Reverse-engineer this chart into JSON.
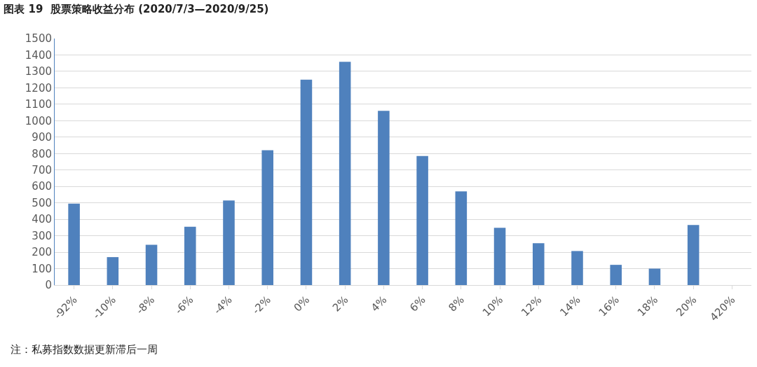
{
  "chart_data": {
    "type": "bar",
    "title": "图表 19  股票策略收益分布 (2020/7/3—2020/9/25)",
    "categories": [
      "-92%",
      "-10%",
      "-8%",
      "-6%",
      "-4%",
      "-2%",
      "0%",
      "2%",
      "4%",
      "6%",
      "8%",
      "10%",
      "12%",
      "14%",
      "16%",
      "18%",
      "20%",
      "420%"
    ],
    "values": [
      495,
      170,
      245,
      355,
      515,
      820,
      1250,
      1358,
      1060,
      785,
      570,
      348,
      255,
      207,
      123,
      100,
      365,
      null
    ],
    "color": "#4f81bd",
    "ylim": [
      0,
      1500
    ],
    "yticks": [
      0,
      100,
      200,
      300,
      400,
      500,
      600,
      700,
      800,
      900,
      1000,
      1100,
      1200,
      1300,
      1400,
      1500
    ],
    "grid": "y",
    "annotations": [
      "注：私募指数数据更新滞后一周"
    ]
  }
}
